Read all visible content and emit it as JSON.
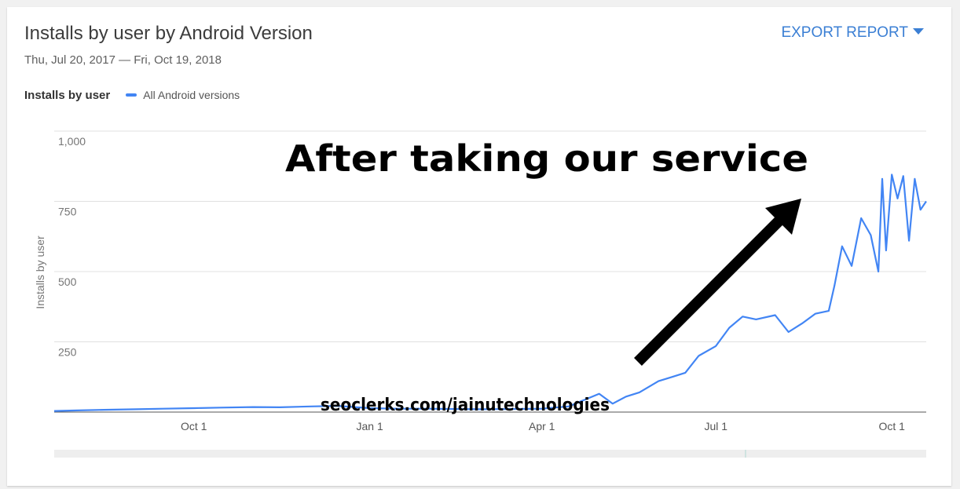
{
  "header": {
    "title": "Installs by user by Android Version",
    "date_range": "Thu, Jul 20, 2017 — Fri, Oct 19, 2018",
    "export_label": "EXPORT REPORT"
  },
  "legend": {
    "metric_label": "Installs by user",
    "series_label": "All Android versions"
  },
  "overlay": {
    "headline": "After taking our service",
    "watermark": "seoclerks.com/jainutechnologies"
  },
  "colors": {
    "line": "#4285f4",
    "accent": "#3b7fd4",
    "arrow": "#000000"
  },
  "chart_data": {
    "type": "line",
    "ylabel": "Installs by user",
    "xlabel": "",
    "ylim": [
      0,
      1000
    ],
    "yticks": [
      0,
      250,
      500,
      750,
      1000
    ],
    "ytick_labels": [
      "",
      "250",
      "500",
      "750",
      "1,000"
    ],
    "xlim": [
      "2017-07-20",
      "2018-10-19"
    ],
    "xticks": [
      {
        "date": "2017-10-01",
        "label": "Oct 1"
      },
      {
        "date": "2018-01-01",
        "label": "Jan 1"
      },
      {
        "date": "2018-04-01",
        "label": "Apr 1"
      },
      {
        "date": "2018-07-01",
        "label": "Jul 1"
      },
      {
        "date": "2018-10-01",
        "label": "Oct 1"
      }
    ],
    "series": [
      {
        "name": "All Android versions",
        "points": [
          [
            "2017-07-20",
            4
          ],
          [
            "2017-08-01",
            6
          ],
          [
            "2017-08-15",
            8
          ],
          [
            "2017-09-01",
            10
          ],
          [
            "2017-09-15",
            12
          ],
          [
            "2017-10-01",
            14
          ],
          [
            "2017-10-15",
            16
          ],
          [
            "2017-11-01",
            18
          ],
          [
            "2017-11-15",
            17
          ],
          [
            "2017-12-01",
            20
          ],
          [
            "2017-12-15",
            22
          ],
          [
            "2018-01-01",
            14
          ],
          [
            "2018-01-15",
            12
          ],
          [
            "2018-02-01",
            12
          ],
          [
            "2018-02-15",
            11
          ],
          [
            "2018-03-01",
            10
          ],
          [
            "2018-03-15",
            11
          ],
          [
            "2018-04-01",
            12
          ],
          [
            "2018-04-15",
            20
          ],
          [
            "2018-04-22",
            40
          ],
          [
            "2018-05-01",
            65
          ],
          [
            "2018-05-08",
            30
          ],
          [
            "2018-05-15",
            55
          ],
          [
            "2018-05-22",
            70
          ],
          [
            "2018-06-01",
            110
          ],
          [
            "2018-06-08",
            125
          ],
          [
            "2018-06-15",
            140
          ],
          [
            "2018-06-22",
            200
          ],
          [
            "2018-07-01",
            235
          ],
          [
            "2018-07-08",
            300
          ],
          [
            "2018-07-15",
            340
          ],
          [
            "2018-07-22",
            330
          ],
          [
            "2018-08-01",
            345
          ],
          [
            "2018-08-08",
            285
          ],
          [
            "2018-08-15",
            315
          ],
          [
            "2018-08-22",
            350
          ],
          [
            "2018-08-29",
            360
          ],
          [
            "2018-09-01",
            450
          ],
          [
            "2018-09-05",
            590
          ],
          [
            "2018-09-10",
            520
          ],
          [
            "2018-09-15",
            690
          ],
          [
            "2018-09-20",
            630
          ],
          [
            "2018-09-24",
            500
          ],
          [
            "2018-09-26",
            830
          ],
          [
            "2018-09-28",
            575
          ],
          [
            "2018-10-01",
            845
          ],
          [
            "2018-10-04",
            760
          ],
          [
            "2018-10-07",
            840
          ],
          [
            "2018-10-10",
            610
          ],
          [
            "2018-10-13",
            830
          ],
          [
            "2018-10-16",
            720
          ],
          [
            "2018-10-19",
            750
          ]
        ]
      }
    ]
  }
}
